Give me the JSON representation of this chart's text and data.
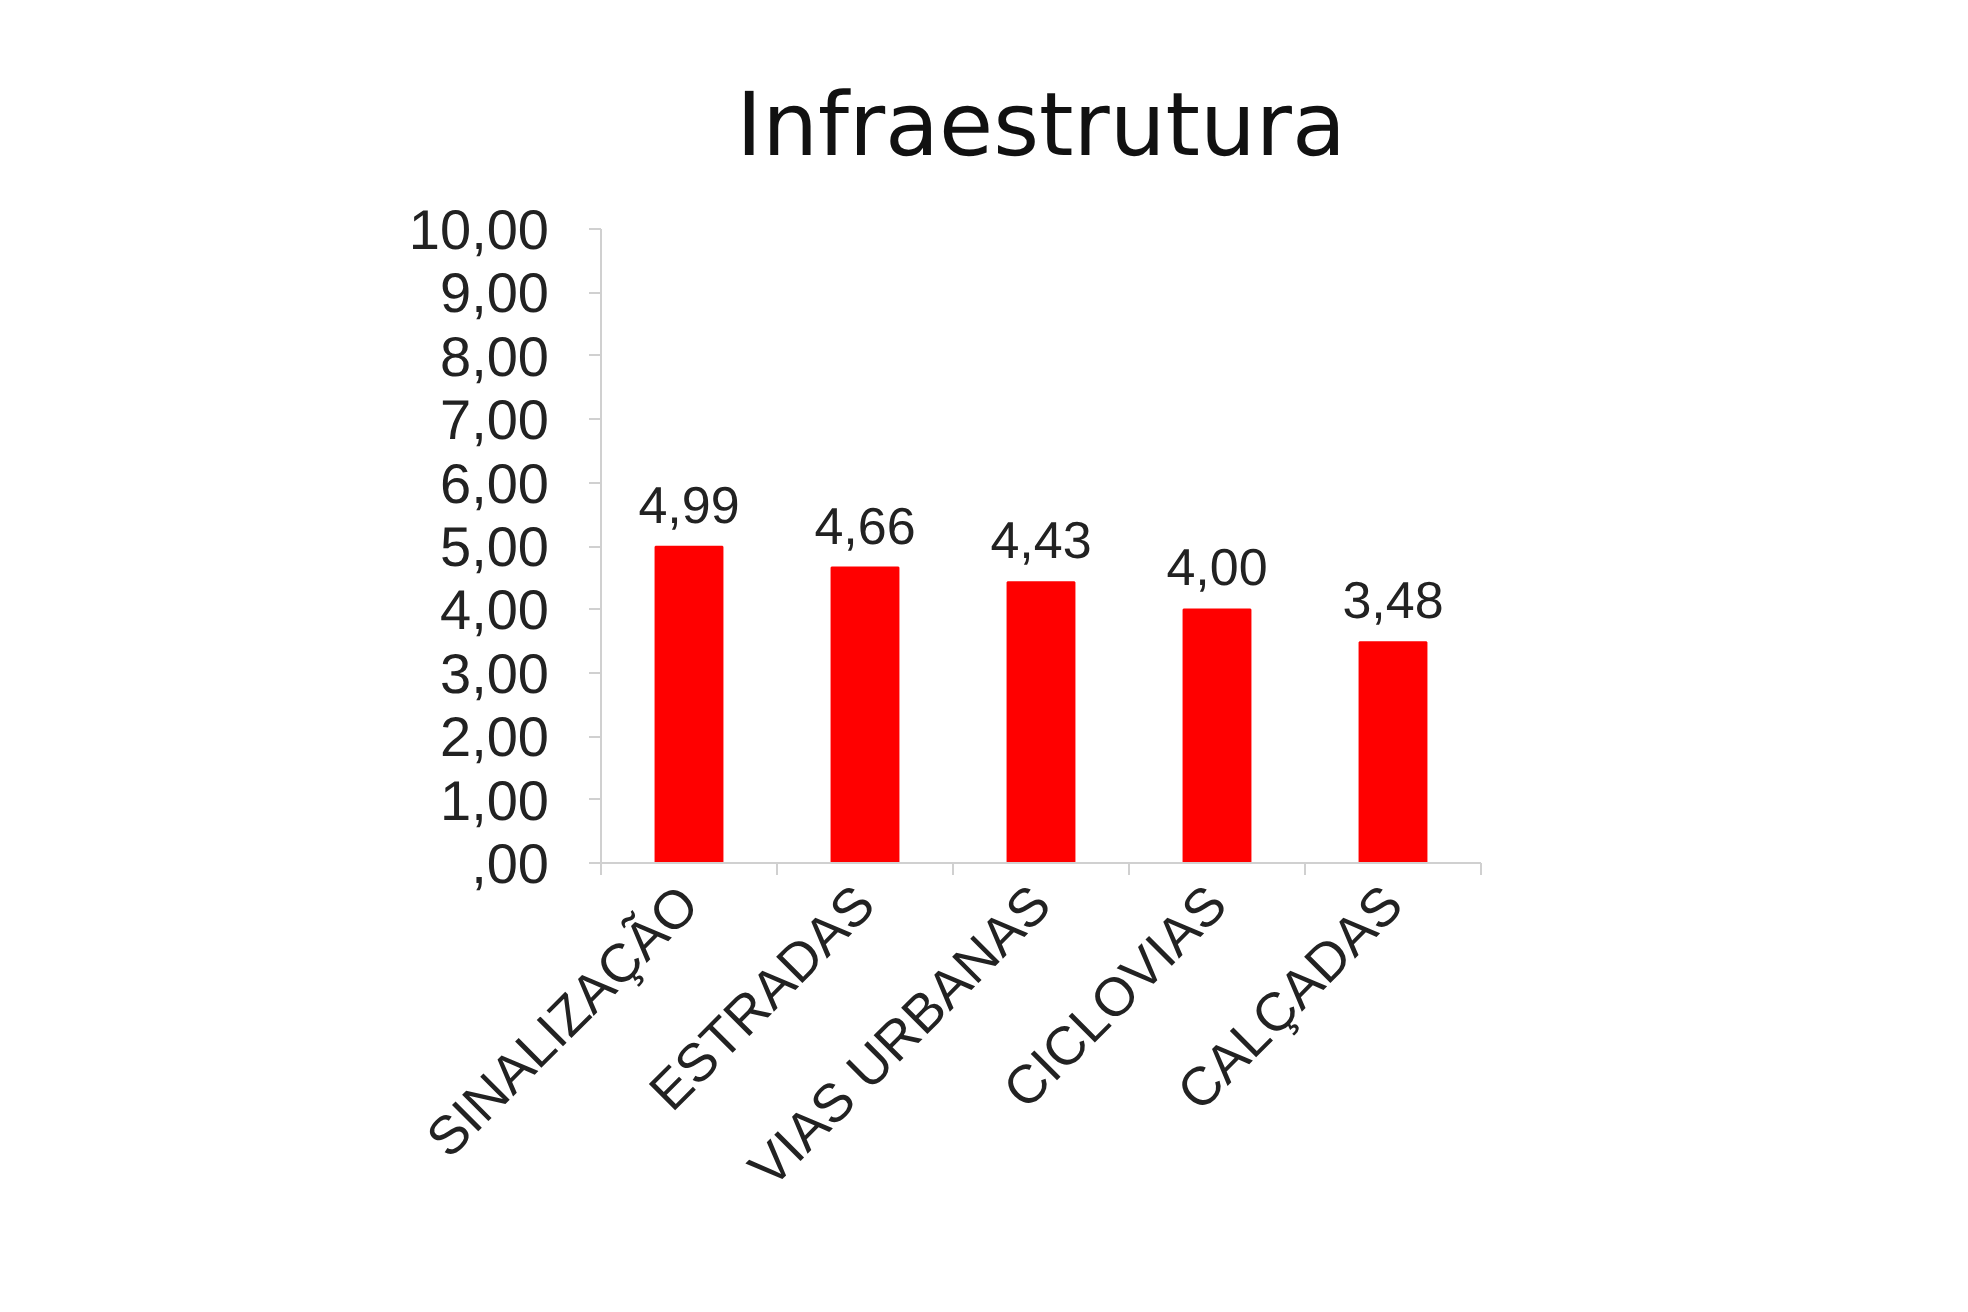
{
  "chart_data": {
    "type": "bar",
    "title": "Infraestrutura",
    "categories": [
      "SINALIZAÇÃO",
      "ESTRADAS",
      "VIAS URBANAS",
      "CICLOVIAS",
      "CALÇADAS"
    ],
    "values": [
      4.99,
      4.66,
      4.43,
      4.0,
      3.48
    ],
    "value_labels": [
      "4,99",
      "4,66",
      "4,43",
      "4,00",
      "3,48"
    ],
    "color": "#ff0000",
    "ylim": [
      0,
      10
    ],
    "yticks": [
      {
        "value": 0,
        "label": ",00"
      },
      {
        "value": 1,
        "label": "1,00"
      },
      {
        "value": 2,
        "label": "2,00"
      },
      {
        "value": 3,
        "label": "3,00"
      },
      {
        "value": 4,
        "label": "4,00"
      },
      {
        "value": 5,
        "label": "5,00"
      },
      {
        "value": 6,
        "label": "6,00"
      },
      {
        "value": 7,
        "label": "7,00"
      },
      {
        "value": 8,
        "label": "8,00"
      },
      {
        "value": 9,
        "label": "9,00"
      },
      {
        "value": 10,
        "label": "10,00"
      }
    ],
    "grid": false
  }
}
